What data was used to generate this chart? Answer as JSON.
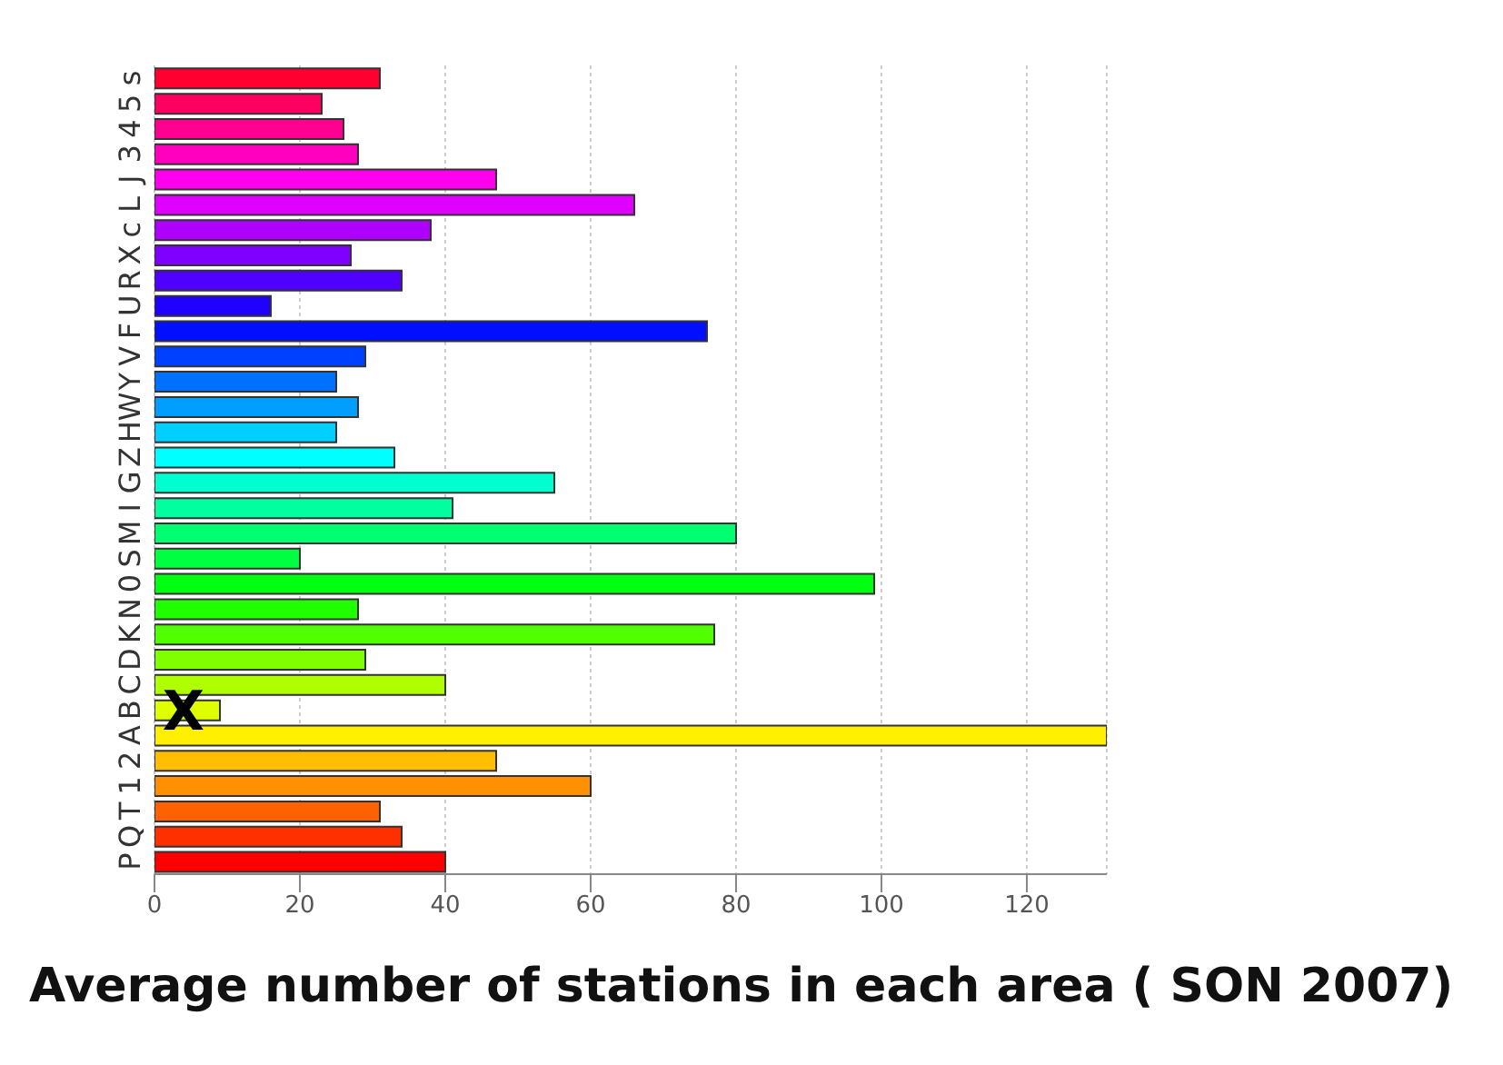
{
  "chart_data": {
    "type": "bar",
    "orientation": "horizontal",
    "title": "Average number of stations in each area ( SON 2007)",
    "categories": [
      "s",
      "5",
      "4",
      "3",
      "J",
      "L",
      "c",
      "X",
      "R",
      "U",
      "F",
      "V",
      "Y",
      "W",
      "H",
      "Z",
      "G",
      "I",
      "M",
      "S",
      "0",
      "N",
      "K",
      "D",
      "C",
      "B",
      "A",
      "2",
      "1",
      "T",
      "Q",
      "P"
    ],
    "values": [
      31,
      23,
      26,
      28,
      47,
      66,
      38,
      27,
      34,
      16,
      76,
      29,
      25,
      28,
      25,
      33,
      55,
      41,
      80,
      20,
      99,
      28,
      77,
      29,
      40,
      9,
      131,
      47,
      60,
      31,
      34,
      40
    ],
    "colors": [
      "#ff0030",
      "#ff0060",
      "#ff0090",
      "#ff00bf",
      "#ff00ef",
      "#df00ff",
      "#af00ff",
      "#8000ff",
      "#5000ff",
      "#2000ff",
      "#0010ff",
      "#0040ff",
      "#0070ff",
      "#009fff",
      "#00cfff",
      "#00ffff",
      "#00ffcf",
      "#00ff9f",
      "#00ff70",
      "#00ff40",
      "#00ff10",
      "#20ff00",
      "#50ff00",
      "#80ff00",
      "#afff00",
      "#dfff00",
      "#ffef00",
      "#ffbf00",
      "#ff9000",
      "#ff6000",
      "#ff3000",
      "#ff0000"
    ],
    "xlim": [
      0,
      131
    ],
    "xticks": [
      0,
      20,
      40,
      60,
      80,
      100,
      120
    ],
    "grid": "x",
    "annotations": [
      {
        "text": "X",
        "x": 4,
        "y": "B"
      }
    ]
  }
}
